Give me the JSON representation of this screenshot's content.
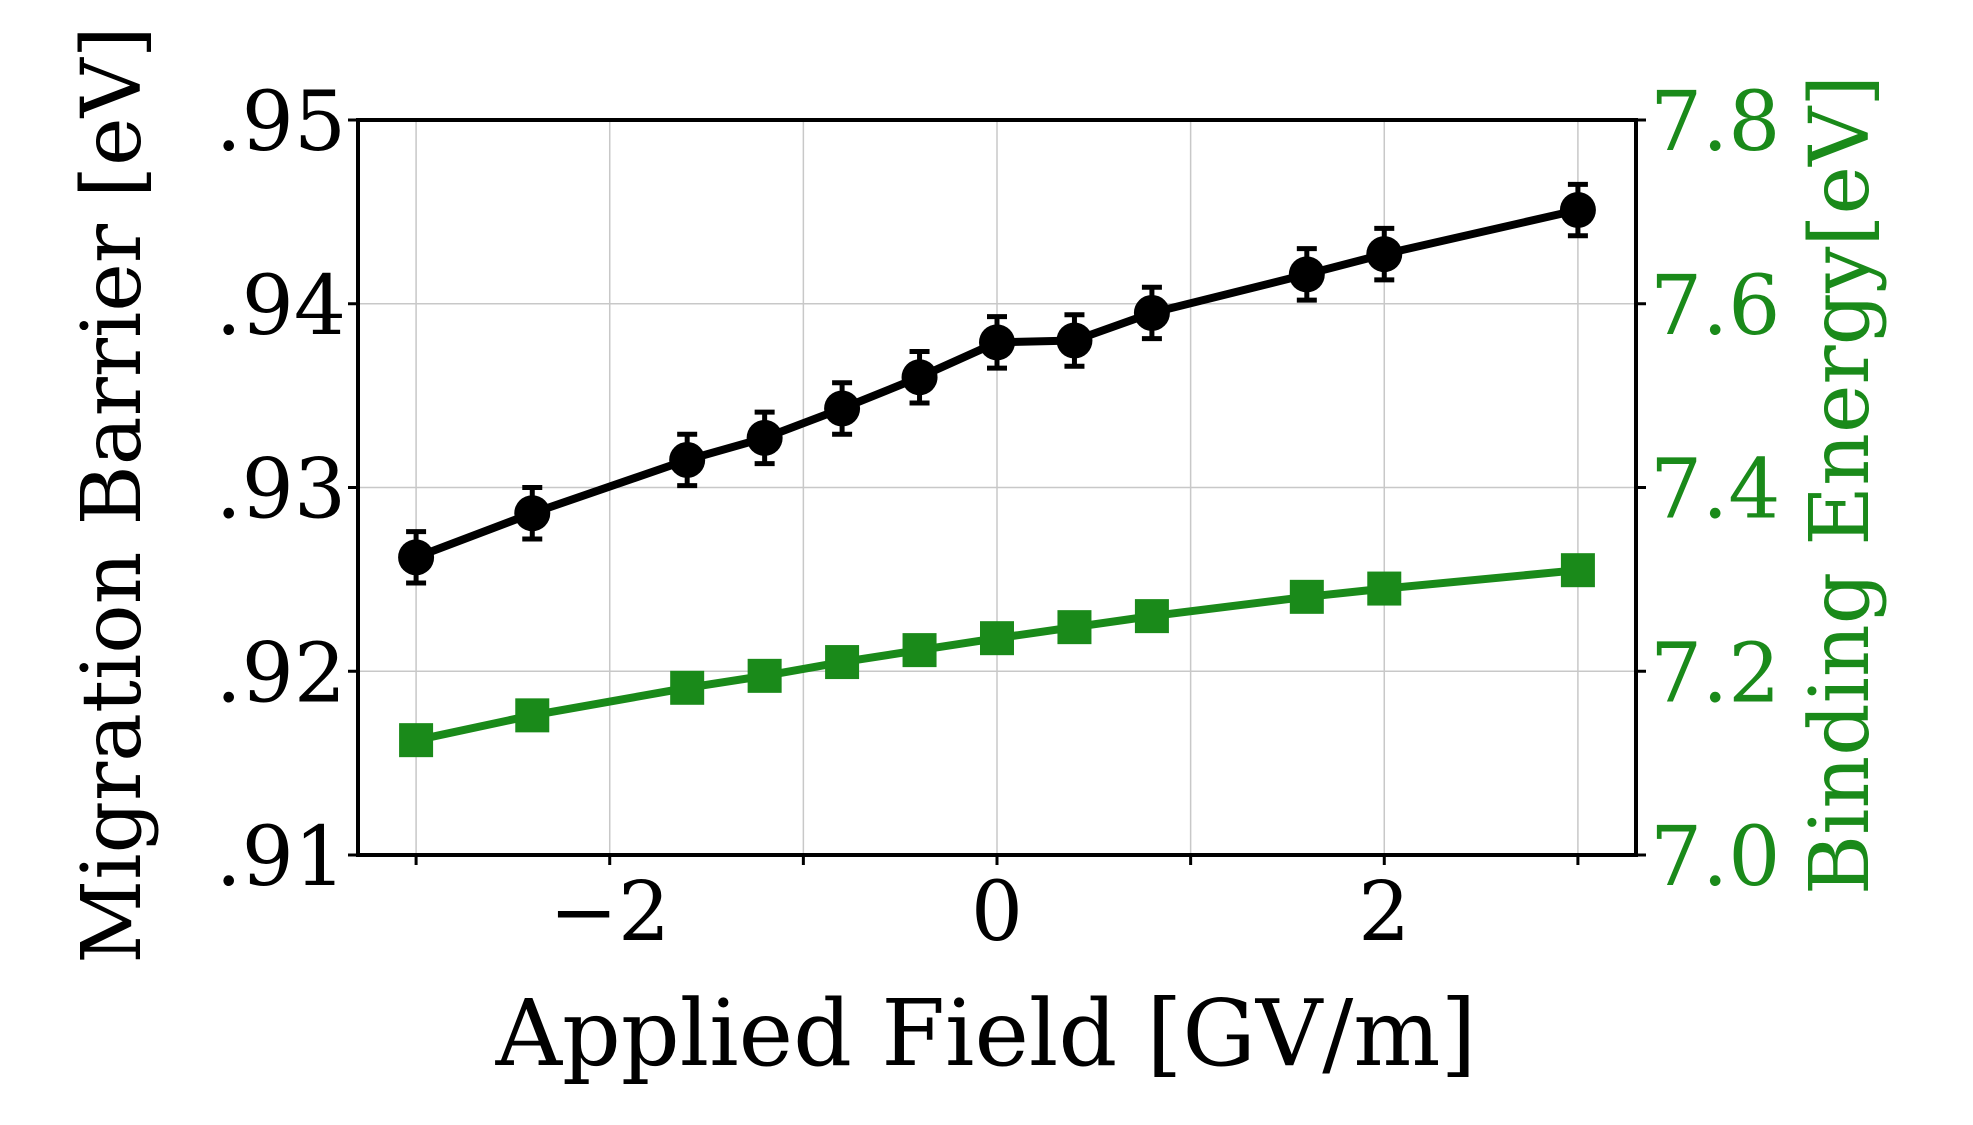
{
  "chart_data": {
    "type": "line",
    "title": "",
    "xlabel": "Applied Field [GV/m]",
    "ylabel_left": "Migration Barrier [eV]",
    "ylabel_right": "Binding Energy[eV]",
    "xlim": [
      -3.3,
      3.3
    ],
    "ylim_left": [
      0.91,
      0.95
    ],
    "ylim_right": [
      7.0,
      7.8
    ],
    "x_ticks": [
      -2,
      0,
      2
    ],
    "x_tick_labels": [
      "−2",
      "0",
      "2"
    ],
    "y_left_ticks": [
      0.91,
      0.92,
      0.93,
      0.94,
      0.95
    ],
    "y_left_tick_labels": [
      ".91",
      ".92",
      ".93",
      ".94",
      ".95"
    ],
    "y_right_ticks": [
      7.0,
      7.2,
      7.4,
      7.6,
      7.8
    ],
    "y_right_tick_labels": [
      "7.0",
      "7.2",
      "7.4",
      "7.6",
      "7.8"
    ],
    "grid": true,
    "colors": {
      "left_axis": "#000000",
      "right_axis": "#1a8a1a",
      "grid": "#c8c8c8"
    },
    "series": [
      {
        "name": "Migration Barrier",
        "axis": "left",
        "marker": "circle",
        "color": "#000000",
        "x": [
          -3.0,
          -2.4,
          -1.6,
          -1.2,
          -0.8,
          -0.4,
          0.0,
          0.4,
          0.8,
          1.6,
          2.0,
          3.0
        ],
        "y": [
          0.9262,
          0.9286,
          0.9315,
          0.9327,
          0.9343,
          0.936,
          0.9379,
          0.938,
          0.9395,
          0.9416,
          0.9427,
          0.9451
        ],
        "yerr": [
          0.0014,
          0.0014,
          0.0014,
          0.0014,
          0.0014,
          0.0014,
          0.0014,
          0.0014,
          0.0014,
          0.0014,
          0.0014,
          0.0014
        ]
      },
      {
        "name": "Binding Energy",
        "axis": "right",
        "marker": "square",
        "color": "#1a8a1a",
        "x": [
          -3.0,
          -2.4,
          -1.6,
          -1.2,
          -0.8,
          -0.4,
          0.0,
          0.4,
          0.8,
          1.6,
          2.0,
          3.0
        ],
        "y": [
          7.125,
          7.152,
          7.182,
          7.195,
          7.21,
          7.223,
          7.236,
          7.248,
          7.26,
          7.281,
          7.29,
          7.31
        ]
      }
    ]
  }
}
